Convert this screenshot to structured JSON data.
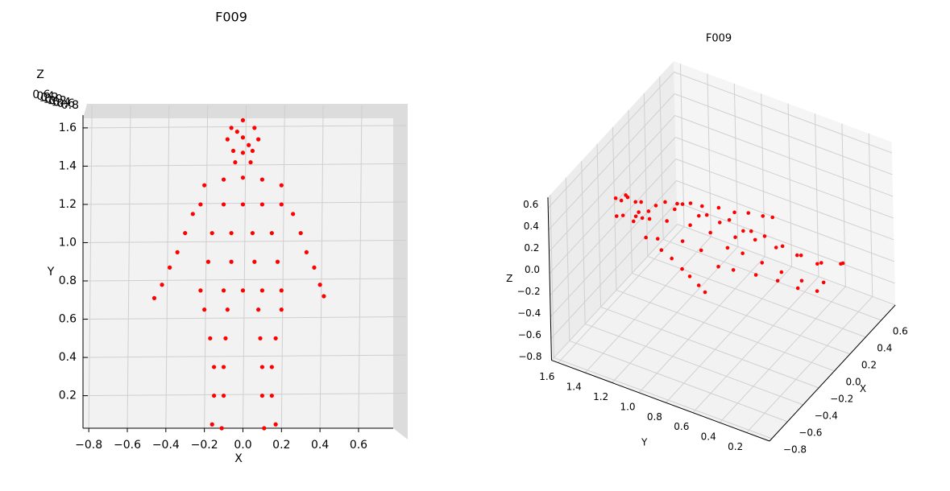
{
  "chart_data": [
    {
      "type": "scatter3d",
      "view": "top",
      "title": "F009",
      "xlabel": "X",
      "ylabel": "Y",
      "zlabel": "Z",
      "color": "#ff0000",
      "xlim": [
        -0.83,
        0.78
      ],
      "ylim": [
        0.03,
        1.65
      ],
      "zlim": [
        -0.8,
        0.7
      ],
      "xticks": [
        {
          "value": -0.8,
          "label": "−0.8"
        },
        {
          "value": -0.6,
          "label": "−0.6"
        },
        {
          "value": -0.4,
          "label": "−0.4"
        },
        {
          "value": -0.2,
          "label": "−0.2"
        },
        {
          "value": 0,
          "label": "0.0"
        },
        0.2,
        0.4,
        0.6
      ],
      "yticks": [
        0.2,
        0.4,
        0.6,
        0.8,
        {
          "value": 1,
          "label": "1.0"
        },
        1.2,
        1.4,
        1.6
      ],
      "zticks": [
        {
          "value": -0.8,
          "label": "−0.8"
        },
        {
          "value": -0.6,
          "label": "−0.6"
        },
        {
          "value": -0.4,
          "label": "−0.4"
        },
        {
          "value": -0.2,
          "label": "−0.2"
        },
        {
          "value": 0,
          "label": "0.0"
        },
        0.2,
        0.4,
        0.6
      ],
      "x": [
        0,
        -0.06,
        0.06,
        -0.08,
        0.08,
        0,
        -0.05,
        0.05,
        0,
        -0.03,
        0.03,
        -0.04,
        0.04,
        -0.2,
        -0.1,
        0,
        0.1,
        0.2,
        -0.22,
        -0.1,
        0,
        0.1,
        0.2,
        -0.16,
        -0.06,
        0.05,
        0.15,
        -0.18,
        -0.06,
        0.06,
        0.18,
        -0.22,
        -0.1,
        0,
        0.1,
        0.2,
        -0.2,
        -0.08,
        0.08,
        0.2,
        -0.17,
        -0.09,
        0.09,
        0.17,
        -0.15,
        -0.1,
        0.1,
        0.15,
        -0.15,
        -0.1,
        0.1,
        0.15,
        -0.16,
        -0.11,
        0.11,
        0.17,
        -0.26,
        -0.3,
        -0.34,
        -0.38,
        -0.42,
        -0.46,
        0.26,
        0.3,
        0.33,
        0.37,
        0.4,
        0.42
      ],
      "y": [
        1.64,
        1.6,
        1.6,
        1.54,
        1.54,
        1.55,
        1.48,
        1.48,
        1.47,
        1.58,
        1.51,
        1.42,
        1.42,
        1.3,
        1.33,
        1.34,
        1.33,
        1.3,
        1.2,
        1.2,
        1.2,
        1.2,
        1.2,
        1.05,
        1.05,
        1.05,
        1.05,
        0.9,
        0.9,
        0.9,
        0.9,
        0.75,
        0.75,
        0.75,
        0.75,
        0.75,
        0.65,
        0.65,
        0.65,
        0.65,
        0.5,
        0.5,
        0.5,
        0.5,
        0.35,
        0.35,
        0.35,
        0.35,
        0.2,
        0.2,
        0.2,
        0.2,
        0.05,
        0.03,
        0.03,
        0.05,
        1.15,
        1.05,
        0.95,
        0.87,
        0.78,
        0.71,
        1.15,
        1.05,
        0.95,
        0.87,
        0.78,
        0.72
      ],
      "z": [
        0.05,
        -0.05,
        0.05,
        0,
        0,
        0.1,
        -0.05,
        0.05,
        0,
        0.08,
        -0.08,
        0,
        0,
        0,
        0.08,
        0.12,
        0.08,
        0,
        0.05,
        0.12,
        0.15,
        0.12,
        0.05,
        0.05,
        0.12,
        0.12,
        0.05,
        0.05,
        0.12,
        0.12,
        0.05,
        0,
        0.08,
        0.1,
        0.08,
        0,
        0,
        0.06,
        0.06,
        0,
        0,
        0.05,
        0.05,
        0,
        0,
        0.04,
        0.04,
        0,
        0,
        0.03,
        0.03,
        0,
        0.05,
        0.1,
        0.1,
        0.05,
        0,
        0,
        -0.02,
        -0.02,
        -0.03,
        -0.03,
        0,
        0,
        -0.02,
        -0.02,
        -0.03,
        -0.03
      ]
    },
    {
      "type": "scatter3d",
      "view": "oblique",
      "title": "F009",
      "xlabel": "X",
      "ylabel": "Y",
      "zlabel": "Z",
      "color": "#ff0000",
      "xlim": [
        -0.83,
        0.78
      ],
      "ylim": [
        0.03,
        1.65
      ],
      "zlim": [
        -0.8,
        0.7
      ],
      "xticks": [
        {
          "value": -0.8,
          "label": "−0.8"
        },
        {
          "value": -0.6,
          "label": "−0.6"
        },
        {
          "value": -0.4,
          "label": "−0.4"
        },
        {
          "value": -0.2,
          "label": "−0.2"
        },
        {
          "value": 0,
          "label": "0.0"
        },
        0.2,
        0.4,
        0.6
      ],
      "yticks": [
        0.2,
        0.4,
        0.6,
        0.8,
        {
          "value": 1,
          "label": "1.0"
        },
        1.2,
        1.4,
        1.6
      ],
      "zticks": [
        {
          "value": -0.8,
          "label": "−0.8"
        },
        {
          "value": -0.6,
          "label": "−0.6"
        },
        {
          "value": -0.4,
          "label": "−0.4"
        },
        {
          "value": -0.2,
          "label": "−0.2"
        },
        {
          "value": 0,
          "label": "0.0"
        },
        0.2,
        0.4,
        0.6
      ],
      "x": [
        0,
        -0.06,
        0.06,
        -0.08,
        0.08,
        0,
        -0.05,
        0.05,
        0,
        -0.03,
        0.03,
        -0.04,
        0.04,
        -0.2,
        -0.1,
        0,
        0.1,
        0.2,
        -0.22,
        -0.1,
        0,
        0.1,
        0.2,
        -0.16,
        -0.06,
        0.05,
        0.15,
        -0.18,
        -0.06,
        0.06,
        0.18,
        -0.22,
        -0.1,
        0,
        0.1,
        0.2,
        -0.2,
        -0.08,
        0.08,
        0.2,
        -0.17,
        -0.09,
        0.09,
        0.17,
        -0.15,
        -0.1,
        0.1,
        0.15,
        -0.15,
        -0.1,
        0.1,
        0.15,
        -0.16,
        -0.11,
        0.11,
        0.17,
        -0.26,
        -0.3,
        -0.34,
        -0.38,
        -0.42,
        -0.46,
        0.26,
        0.3,
        0.33,
        0.37,
        0.4,
        0.42
      ],
      "y": [
        1.64,
        1.6,
        1.6,
        1.54,
        1.54,
        1.55,
        1.48,
        1.48,
        1.47,
        1.58,
        1.51,
        1.42,
        1.42,
        1.3,
        1.33,
        1.34,
        1.33,
        1.3,
        1.2,
        1.2,
        1.2,
        1.2,
        1.2,
        1.05,
        1.05,
        1.05,
        1.05,
        0.9,
        0.9,
        0.9,
        0.9,
        0.75,
        0.75,
        0.75,
        0.75,
        0.75,
        0.65,
        0.65,
        0.65,
        0.65,
        0.5,
        0.5,
        0.5,
        0.5,
        0.35,
        0.35,
        0.35,
        0.35,
        0.2,
        0.2,
        0.2,
        0.2,
        0.05,
        0.03,
        0.03,
        0.05,
        1.15,
        1.05,
        0.95,
        0.87,
        0.78,
        0.71,
        1.15,
        1.05,
        0.95,
        0.87,
        0.78,
        0.72
      ],
      "z": [
        0.05,
        -0.05,
        0.05,
        0,
        0,
        0.1,
        -0.05,
        0.05,
        0,
        0.08,
        -0.08,
        0,
        0,
        0,
        0.08,
        0.12,
        0.08,
        0,
        0.05,
        0.12,
        0.15,
        0.12,
        0.05,
        0.05,
        0.12,
        0.12,
        0.05,
        0.05,
        0.12,
        0.12,
        0.05,
        0,
        0.08,
        0.1,
        0.08,
        0,
        0,
        0.06,
        0.06,
        0,
        0,
        0.05,
        0.05,
        0,
        0,
        0.04,
        0.04,
        0,
        0,
        0.03,
        0.03,
        0,
        0.05,
        0.1,
        0.1,
        0.05,
        0,
        0,
        -0.02,
        -0.02,
        -0.03,
        -0.03,
        0,
        0,
        -0.02,
        -0.02,
        -0.03,
        -0.03
      ]
    }
  ]
}
